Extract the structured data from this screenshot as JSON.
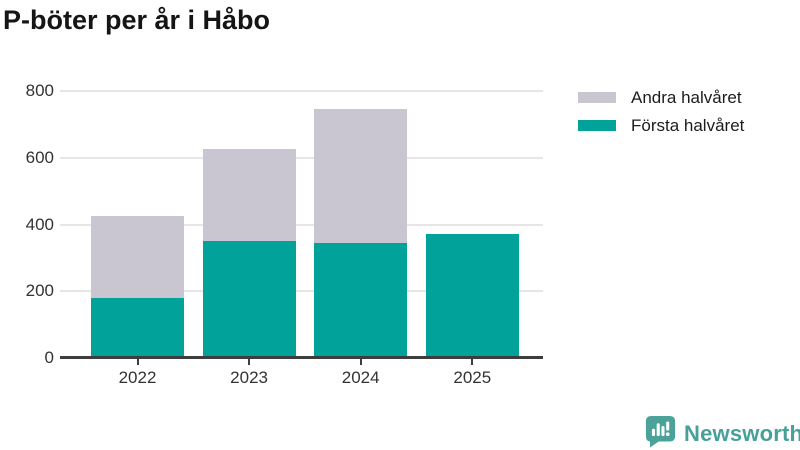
{
  "header": {
    "title": "P-böter per år i Håbo"
  },
  "chart_data": {
    "type": "bar",
    "stacked": true,
    "title": "P-böter per år i Håbo",
    "categories": [
      "2022",
      "2023",
      "2024",
      "2025"
    ],
    "series": [
      {
        "name": "Första halvåret",
        "color": "#00a29a",
        "values": [
          180,
          350,
          345,
          373
        ]
      },
      {
        "name": "Andra halvåret",
        "color": "#c9c6d1",
        "values": [
          245,
          275,
          400,
          0
        ]
      }
    ],
    "stack_totals": [
      425,
      625,
      745,
      373
    ],
    "yticks": [
      0,
      200,
      400,
      600,
      800
    ],
    "ylim": [
      0,
      800
    ],
    "xlabel": "",
    "ylabel": "",
    "grid": "horizontal",
    "legend_position": "top-right"
  },
  "legend": {
    "items": [
      {
        "label": "Andra halvåret",
        "color": "#c9c6d1"
      },
      {
        "label": "Första halvåret",
        "color": "#00a29a"
      }
    ]
  },
  "branding": {
    "name": "Newsworthy",
    "color": "#48a09a",
    "icon": "newsworthy-speech-bubble-chart-icon"
  },
  "colors": {
    "first_half": "#00a29a",
    "second_half": "#c9c6d1",
    "axis": "#3d3d3d",
    "grid": "#e6e6e6",
    "tick_text": "#333333",
    "title_text": "#151515"
  }
}
